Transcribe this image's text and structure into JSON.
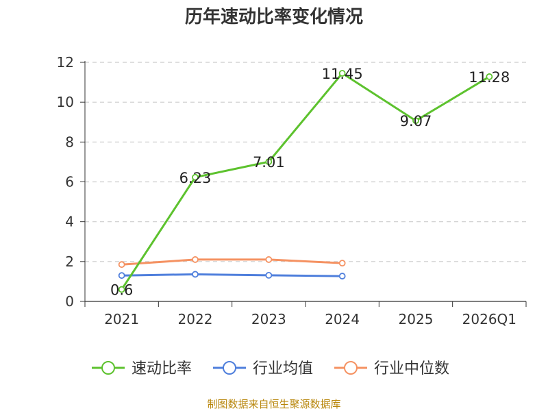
{
  "chart_data": {
    "type": "line",
    "title": "历年速动比率变化情况",
    "categories": [
      "2021",
      "2022",
      "2023",
      "2024",
      "2025",
      "2026Q1"
    ],
    "ylim": [
      0,
      12
    ],
    "yticks": [
      0,
      2,
      4,
      6,
      8,
      10,
      12
    ],
    "grid": true,
    "legend_position": "bottom",
    "series": [
      {
        "name": "速动比率",
        "color": "#5dc22e",
        "values": [
          0.6,
          6.23,
          7.01,
          11.45,
          9.07,
          11.28
        ],
        "show_labels": true
      },
      {
        "name": "行业均值",
        "color": "#4f7fdc",
        "values": [
          1.3,
          1.36,
          1.31,
          1.27,
          null,
          null
        ],
        "show_labels": false
      },
      {
        "name": "行业中位数",
        "color": "#f59262",
        "values": [
          1.85,
          2.1,
          2.1,
          1.92,
          null,
          null
        ],
        "show_labels": false
      }
    ]
  },
  "source": "制图数据来自恒生聚源数据库"
}
